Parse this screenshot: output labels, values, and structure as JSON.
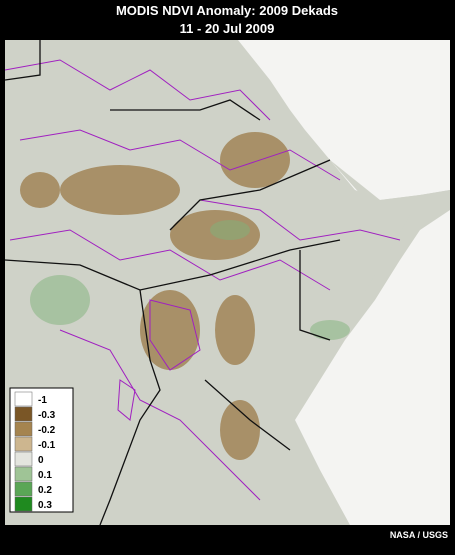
{
  "header": {
    "title": "MODIS NDVI Anomaly: 2009 Dekads",
    "subtitle": "11 - 20 Jul 2009"
  },
  "legend": {
    "items": [
      {
        "label": "-1",
        "color": "#ffffff"
      },
      {
        "label": "-0.3",
        "color": "#7a5626"
      },
      {
        "label": "-0.2",
        "color": "#a5844f"
      },
      {
        "label": "-0.1",
        "color": "#cdb68f"
      },
      {
        "label": "0",
        "color": "#e4e5df"
      },
      {
        "label": "0.1",
        "color": "#9fc496"
      },
      {
        "label": "0.2",
        "color": "#5aa656"
      },
      {
        "label": "0.3",
        "color": "#1f8a1f"
      }
    ]
  },
  "credit": "NASA / USGS"
}
